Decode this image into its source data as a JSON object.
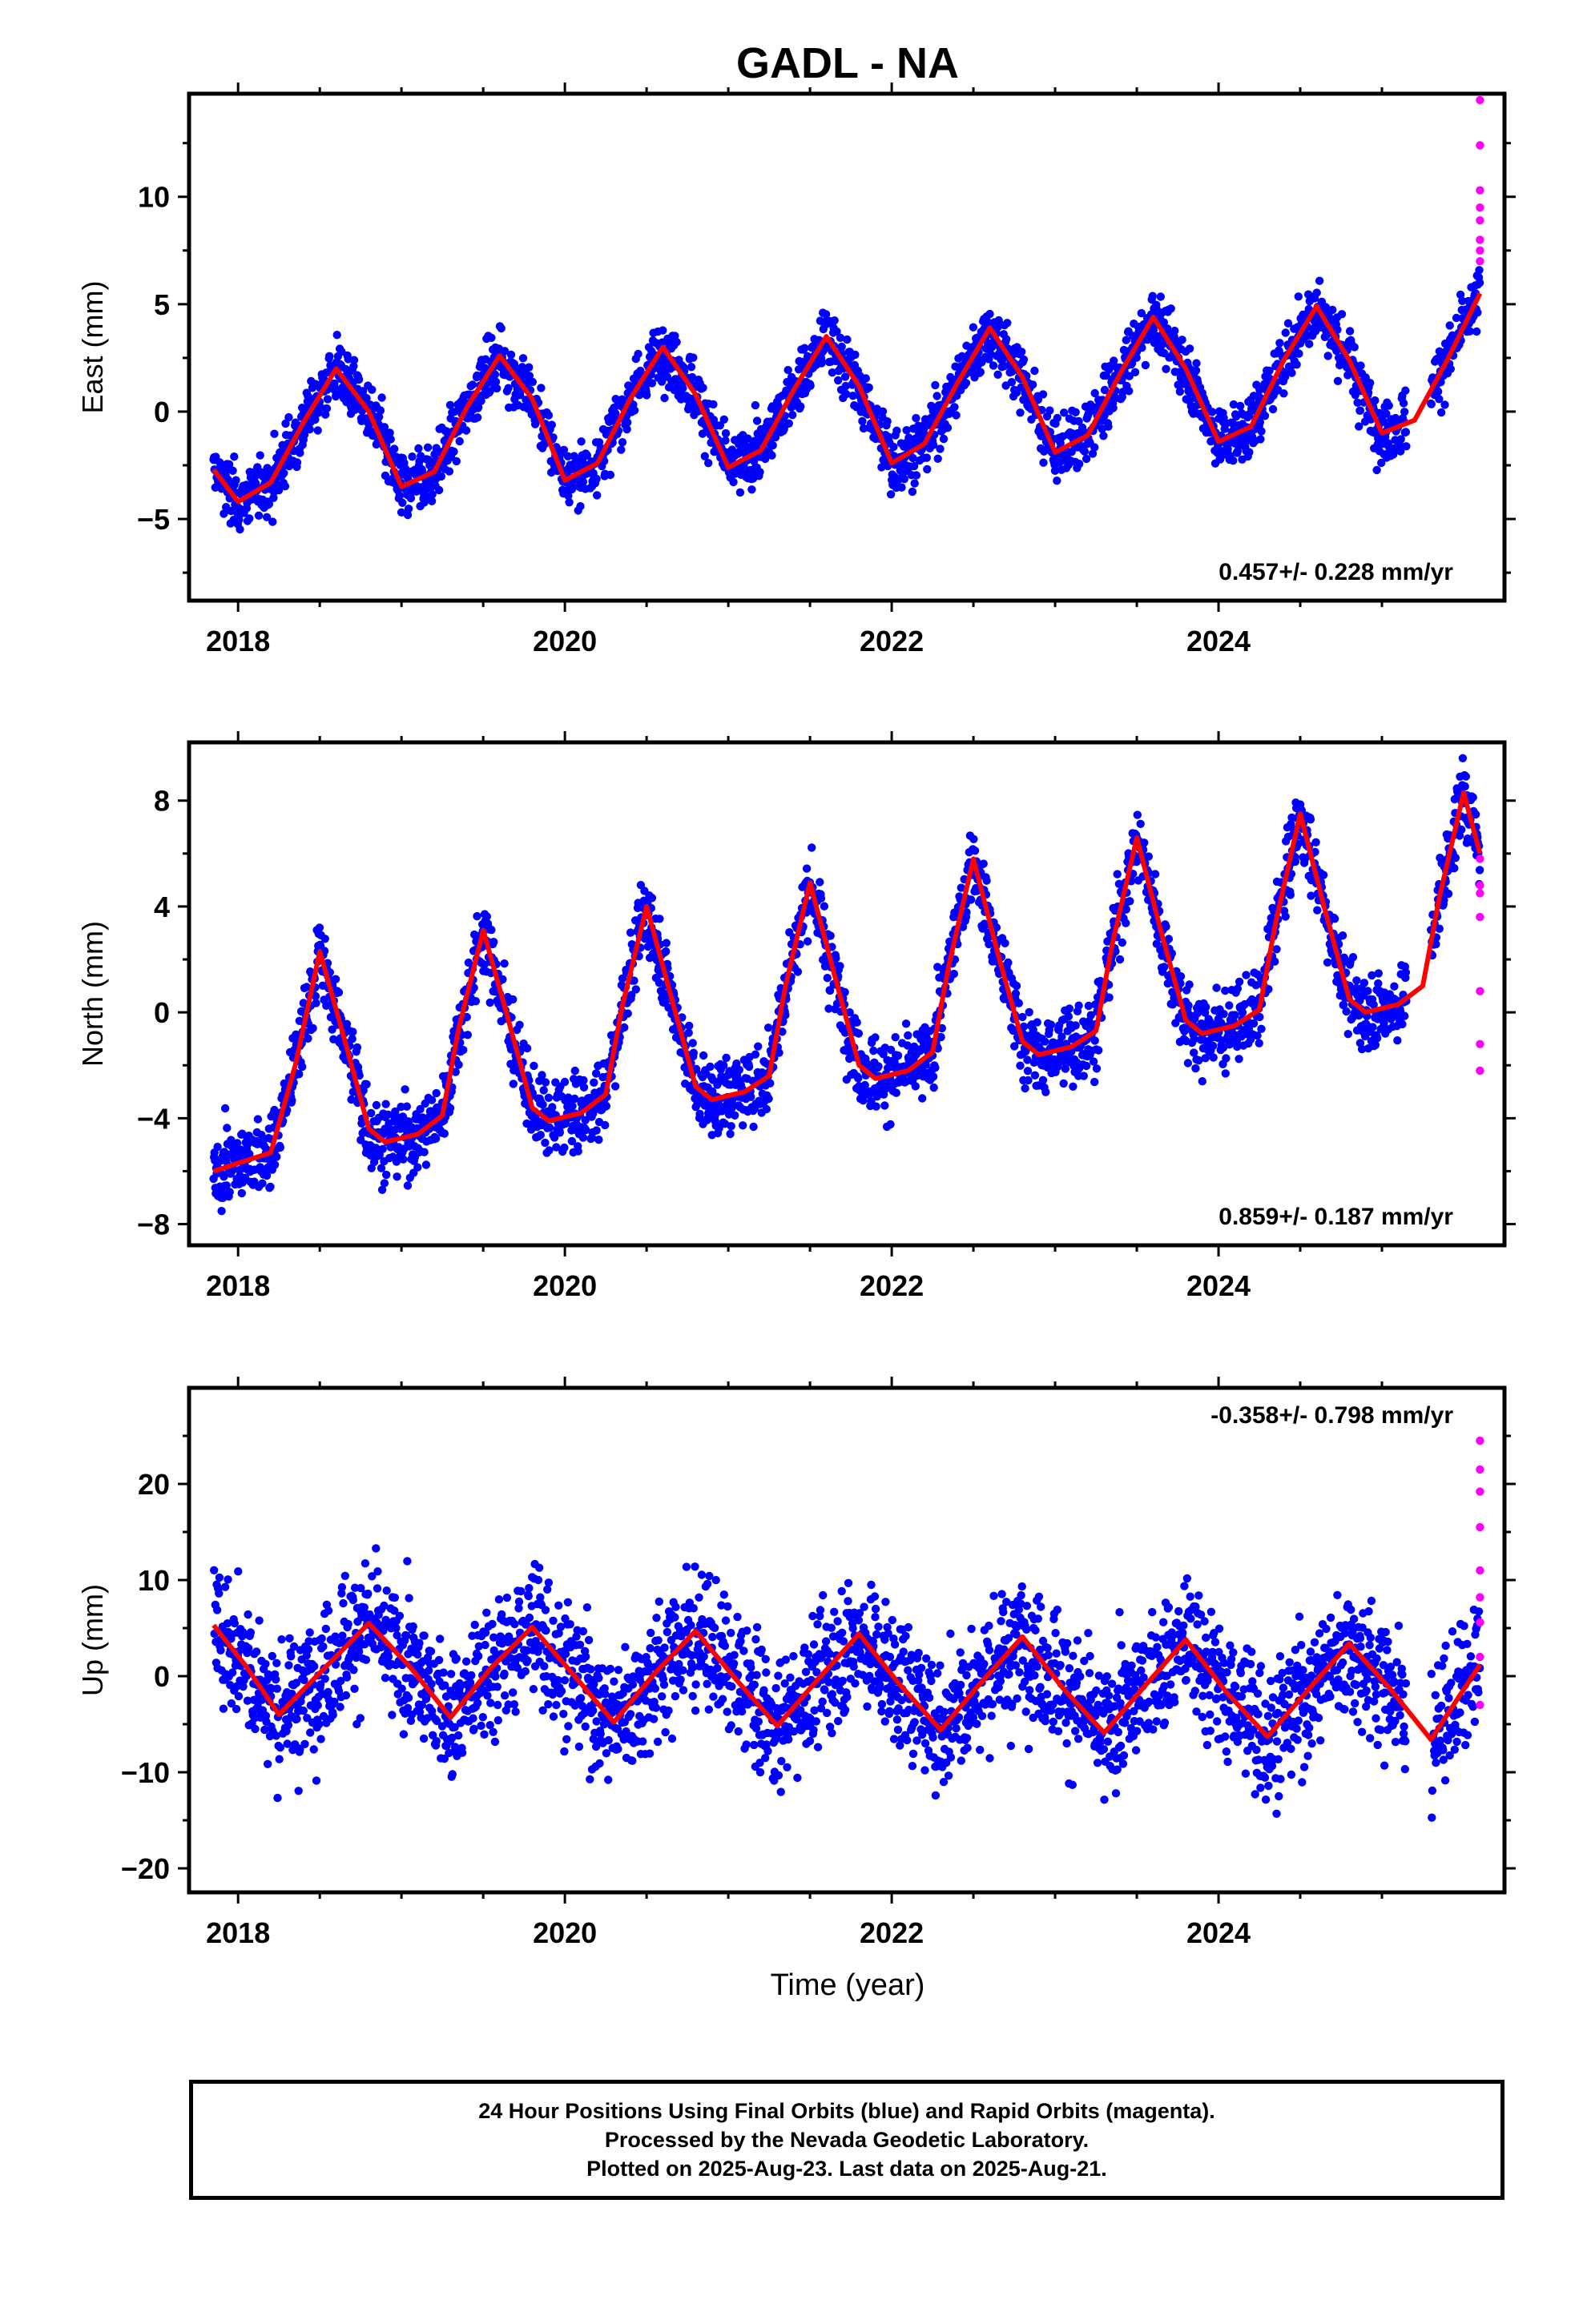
{
  "title": "GADL - NA",
  "xlabel": "Time (year)",
  "caption": [
    "24 Hour Positions Using Final Orbits (blue) and Rapid Orbits (magenta).",
    "Processed by the Nevada Geodetic Laboratory.",
    "Plotted on 2025-Aug-23. Last data on 2025-Aug-21."
  ],
  "colors": {
    "final": "#0000ff",
    "rapid": "#ff00ff",
    "model": "#ff0000",
    "axes": "#000000"
  },
  "chart_data": [
    {
      "type": "scatter",
      "ylabel": "East (mm)",
      "xlim": [
        2017.7,
        2025.75
      ],
      "ylim": [
        -8.8,
        14.8
      ],
      "yticks": [
        -5,
        0,
        5,
        10
      ],
      "yminor": [
        -7.5,
        -2.5,
        2.5,
        7.5,
        12.5
      ],
      "xticks": [
        2018,
        2020,
        2022,
        2024
      ],
      "rate_label": "0.457+/- 0.228 mm/yr",
      "rate_position": "bottom-right",
      "series": [
        {
          "values_kind": "final",
          "approx_trend": {
            "rate": 0.457,
            "annual_amplitude": 3.2,
            "peak_month_fraction": 0.62,
            "scatter": 1.0,
            "start": 2017.85,
            "end": 2025.15
          }
        },
        {
          "values_kind": "final",
          "approx_trend": {
            "rate": 0.457,
            "annual_amplitude": 3.2,
            "peak_month_fraction": 0.62,
            "scatter": 1.0,
            "start": 2025.3,
            "end": 2025.6
          }
        },
        {
          "values_kind": "rapid",
          "x": [
            2025.6,
            2025.6,
            2025.6,
            2025.6,
            2025.6,
            2025.6,
            2025.6,
            2025.6
          ],
          "y": [
            14.5,
            12.4,
            10.3,
            9.5,
            8.9,
            8.0,
            7.5,
            7.0
          ]
        }
      ],
      "model": {
        "x": [
          2017.85,
          2018.0,
          2018.2,
          2018.4,
          2018.6,
          2018.8,
          2019.0,
          2019.2,
          2019.4,
          2019.6,
          2019.8,
          2020.0,
          2020.2,
          2020.4,
          2020.6,
          2020.8,
          2021.0,
          2021.2,
          2021.4,
          2021.6,
          2021.8,
          2022.0,
          2022.2,
          2022.4,
          2022.6,
          2022.8,
          2023.0,
          2023.2,
          2023.4,
          2023.6,
          2023.8,
          2024.0,
          2024.2,
          2024.4,
          2024.6,
          2024.8,
          2025.0,
          2025.2,
          2025.4,
          2025.6
        ],
        "y": [
          -2.7,
          -4.2,
          -3.3,
          -0.5,
          2.0,
          0.0,
          -3.5,
          -2.8,
          0.2,
          2.6,
          0.6,
          -3.2,
          -2.4,
          0.6,
          3.0,
          0.8,
          -2.6,
          -1.8,
          1.0,
          3.5,
          1.2,
          -2.4,
          -1.5,
          1.3,
          3.9,
          1.6,
          -1.9,
          -1.1,
          1.8,
          4.4,
          2.0,
          -1.4,
          -0.7,
          2.4,
          4.9,
          2.4,
          -1.0,
          -0.4,
          2.4,
          5.5
        ]
      }
    },
    {
      "type": "scatter",
      "ylabel": "North (mm)",
      "xlim": [
        2017.7,
        2025.75
      ],
      "ylim": [
        -8.8,
        10.2
      ],
      "yticks": [
        -8,
        -4,
        0,
        4,
        8
      ],
      "yminor": [
        -6,
        -2,
        2,
        6
      ],
      "xticks": [
        2018,
        2020,
        2022,
        2024
      ],
      "rate_label": "0.859+/- 0.187 mm/yr",
      "rate_position": "bottom-right",
      "series": [
        {
          "values_kind": "final",
          "approx_trend": {
            "rate": 0.859,
            "annual_amplitude": 3.6,
            "peak_month_fraction": 0.5,
            "scatter": 1.0,
            "start": 2017.85,
            "end": 2025.15
          }
        },
        {
          "values_kind": "final",
          "approx_trend": {
            "rate": 0.859,
            "annual_amplitude": 3.6,
            "peak_month_fraction": 0.5,
            "scatter": 1.0,
            "start": 2025.3,
            "end": 2025.6
          }
        },
        {
          "values_kind": "rapid",
          "x": [
            2025.6,
            2025.6,
            2025.6,
            2025.6,
            2025.6,
            2025.6,
            2025.6
          ],
          "y": [
            5.8,
            4.8,
            4.5,
            3.6,
            0.8,
            -1.2,
            -2.2
          ]
        }
      ],
      "model": {
        "x": [
          2017.85,
          2018.0,
          2018.2,
          2018.35,
          2018.5,
          2018.65,
          2018.8,
          2018.9,
          2019.1,
          2019.25,
          2019.35,
          2019.5,
          2019.65,
          2019.8,
          2019.9,
          2020.1,
          2020.25,
          2020.35,
          2020.5,
          2020.65,
          2020.8,
          2020.9,
          2021.1,
          2021.25,
          2021.35,
          2021.5,
          2021.65,
          2021.8,
          2021.9,
          2022.1,
          2022.25,
          2022.35,
          2022.5,
          2022.65,
          2022.8,
          2022.9,
          2023.1,
          2023.25,
          2023.35,
          2023.5,
          2023.65,
          2023.8,
          2023.9,
          2024.1,
          2024.25,
          2024.35,
          2024.5,
          2024.65,
          2024.8,
          2024.9,
          2025.1,
          2025.25,
          2025.35,
          2025.5,
          2025.6
        ],
        "y": [
          -6.0,
          -5.7,
          -5.3,
          -2.0,
          2.3,
          -1.0,
          -4.4,
          -4.9,
          -4.6,
          -3.9,
          -0.6,
          3.1,
          -0.2,
          -3.6,
          -4.1,
          -3.8,
          -3.1,
          0.2,
          4.0,
          0.6,
          -2.8,
          -3.3,
          -3.0,
          -2.4,
          1.0,
          4.9,
          1.4,
          -2.0,
          -2.5,
          -2.2,
          -1.5,
          1.8,
          5.8,
          2.2,
          -1.1,
          -1.6,
          -1.3,
          -0.7,
          2.6,
          6.6,
          3.0,
          -0.3,
          -0.8,
          -0.5,
          0.1,
          3.4,
          7.5,
          3.9,
          0.5,
          0.0,
          0.3,
          1.0,
          4.3,
          8.3,
          6.0
        ]
      }
    },
    {
      "type": "scatter",
      "ylabel": "Up (mm)",
      "xlim": [
        2017.7,
        2025.75
      ],
      "ylim": [
        -22.5,
        30
      ],
      "yticks": [
        -20,
        -10,
        0,
        10,
        20
      ],
      "yminor": [
        -15,
        -5,
        5,
        15,
        25
      ],
      "xticks": [
        2018,
        2020,
        2022,
        2024
      ],
      "rate_label": "-0.358+/- 0.798 mm/yr",
      "rate_position": "top-right",
      "series": [
        {
          "values_kind": "final",
          "approx_trend": {
            "rate": -0.358,
            "annual_amplitude": 4.8,
            "peak_month_fraction": 0.82,
            "scatter": 4.8,
            "start": 2017.85,
            "end": 2025.15
          }
        },
        {
          "values_kind": "final",
          "approx_trend": {
            "rate": -0.358,
            "annual_amplitude": 4.8,
            "peak_month_fraction": 0.82,
            "scatter": 4.8,
            "start": 2025.3,
            "end": 2025.6
          }
        },
        {
          "values_kind": "rapid",
          "x": [
            2025.6,
            2025.6,
            2025.6,
            2025.6,
            2025.6,
            2025.6,
            2025.6,
            2025.6,
            2025.6
          ],
          "y": [
            24.5,
            21.5,
            19.2,
            15.5,
            11.0,
            8.2,
            5.6,
            2.0,
            -3.0
          ]
        }
      ],
      "model": {
        "x": [
          2017.85,
          2018.05,
          2018.25,
          2018.55,
          2018.8,
          2019.05,
          2019.3,
          2019.55,
          2019.8,
          2020.05,
          2020.3,
          2020.55,
          2020.8,
          2021.05,
          2021.3,
          2021.55,
          2021.8,
          2022.05,
          2022.3,
          2022.55,
          2022.8,
          2023.05,
          2023.3,
          2023.55,
          2023.8,
          2024.05,
          2024.3,
          2024.55,
          2024.8,
          2025.05,
          2025.3,
          2025.6
        ],
        "y": [
          5.3,
          1.0,
          -4.0,
          1.2,
          5.5,
          1.0,
          -4.3,
          0.9,
          5.1,
          0.2,
          -4.8,
          0.3,
          4.7,
          -0.4,
          -5.2,
          -0.3,
          4.4,
          -0.9,
          -5.6,
          -0.6,
          4.1,
          -1.3,
          -5.9,
          -1.0,
          3.8,
          -1.7,
          -6.3,
          -1.4,
          3.4,
          -1.3,
          -6.6,
          1.2
        ]
      }
    }
  ]
}
